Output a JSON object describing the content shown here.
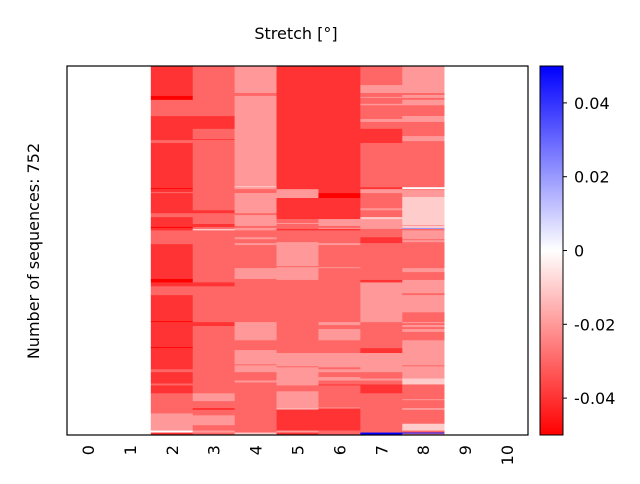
{
  "chart_data": {
    "type": "heatmap",
    "title": "Stretch [°]",
    "xlabel": "",
    "ylabel": "Number of sequences: 752",
    "n_sequences": 752,
    "x_ticks": [
      "0",
      "1",
      "2",
      "3",
      "4",
      "5",
      "6",
      "7",
      "8",
      "9",
      "10"
    ],
    "colorbar": {
      "colormap": "bwr",
      "range": [
        -0.05,
        0.05
      ],
      "ticks": [
        0.04,
        0.02,
        0,
        -0.02,
        -0.04
      ],
      "tick_labels": [
        "0.04",
        "0.02",
        "0",
        "-0.02",
        "-0.04"
      ],
      "neg_color": "#ff0000",
      "pos_color": "#0000ff",
      "mid_color": "#ffffff"
    },
    "columns": [
      {
        "index": 0,
        "segments": []
      },
      {
        "index": 1,
        "segments": []
      },
      {
        "index": 2,
        "segments": [
          [
            0,
            -0.04
          ],
          [
            61,
            -0.05
          ],
          [
            69,
            -0.03
          ],
          [
            102,
            -0.04
          ],
          [
            151,
            -0.03
          ],
          [
            157,
            -0.04
          ],
          [
            249,
            -0.05
          ],
          [
            251,
            -0.04
          ],
          [
            257,
            -0.03
          ],
          [
            259,
            -0.04
          ],
          [
            300,
            -0.03
          ],
          [
            308,
            -0.04
          ],
          [
            328,
            -0.05
          ],
          [
            330,
            -0.04
          ],
          [
            335,
            -0.03
          ],
          [
            363,
            -0.04
          ],
          [
            434,
            -0.05
          ],
          [
            441,
            -0.04
          ],
          [
            449,
            -0.03
          ],
          [
            467,
            -0.04
          ],
          [
            520,
            -0.05
          ],
          [
            522,
            -0.04
          ],
          [
            573,
            -0.05
          ],
          [
            575,
            -0.04
          ],
          [
            618,
            -0.03
          ],
          [
            624,
            -0.04
          ],
          [
            647,
            -0.03
          ],
          [
            651,
            -0.04
          ],
          [
            667,
            -0.03
          ],
          [
            708,
            -0.02
          ],
          [
            743,
            0
          ],
          [
            747,
            -0.04
          ]
        ]
      },
      {
        "index": 3,
        "segments": [
          [
            0,
            -0.03
          ],
          [
            102,
            -0.04
          ],
          [
            128,
            -0.03
          ],
          [
            149,
            -0.04
          ],
          [
            151,
            -0.03
          ],
          [
            294,
            -0.04
          ],
          [
            300,
            -0.03
          ],
          [
            322,
            -0.04
          ],
          [
            328,
            -0.03
          ],
          [
            332,
            -0.01
          ],
          [
            335,
            -0.03
          ],
          [
            441,
            -0.04
          ],
          [
            449,
            -0.03
          ],
          [
            522,
            -0.04
          ],
          [
            530,
            -0.03
          ],
          [
            667,
            -0.02
          ],
          [
            683,
            -0.03
          ],
          [
            698,
            -0.05
          ],
          [
            700,
            -0.03
          ],
          [
            712,
            -0.02
          ],
          [
            732,
            -0.03
          ],
          [
            743,
            -0.02
          ],
          [
            747,
            -0.03
          ]
        ]
      },
      {
        "index": 4,
        "segments": [
          [
            0,
            -0.02
          ],
          [
            55,
            -0.03
          ],
          [
            61,
            -0.02
          ],
          [
            245,
            -0.01
          ],
          [
            247,
            -0.02
          ],
          [
            251,
            -0.03
          ],
          [
            259,
            -0.02
          ],
          [
            300,
            -0.03
          ],
          [
            304,
            -0.02
          ],
          [
            326,
            -0.03
          ],
          [
            330,
            -0.02
          ],
          [
            335,
            -0.03
          ],
          [
            349,
            -0.02
          ],
          [
            353,
            -0.03
          ],
          [
            361,
            -0.02
          ],
          [
            365,
            -0.03
          ],
          [
            412,
            -0.02
          ],
          [
            434,
            -0.03
          ],
          [
            522,
            -0.02
          ],
          [
            559,
            -0.03
          ],
          [
            579,
            -0.02
          ],
          [
            608,
            -0.03
          ],
          [
            610,
            -0.02
          ],
          [
            624,
            -0.03
          ],
          [
            641,
            -0.02
          ],
          [
            645,
            -0.03
          ],
          [
            747,
            -0.01
          ]
        ]
      },
      {
        "index": 5,
        "segments": [
          [
            0,
            -0.04
          ],
          [
            251,
            -0.02
          ],
          [
            269,
            -0.04
          ],
          [
            312,
            -0.03
          ],
          [
            320,
            -0.02
          ],
          [
            322,
            -0.03
          ],
          [
            332,
            -0.04
          ],
          [
            335,
            -0.03
          ],
          [
            359,
            -0.02
          ],
          [
            408,
            -0.03
          ],
          [
            410,
            -0.02
          ],
          [
            436,
            -0.03
          ],
          [
            585,
            -0.02
          ],
          [
            612,
            -0.03
          ],
          [
            614,
            -0.02
          ],
          [
            651,
            -0.03
          ],
          [
            663,
            -0.02
          ],
          [
            698,
            -0.01
          ],
          [
            700,
            -0.04
          ],
          [
            743,
            -0.02
          ],
          [
            747,
            -0.04
          ]
        ]
      },
      {
        "index": 6,
        "segments": [
          [
            0,
            -0.04
          ],
          [
            259,
            -0.05
          ],
          [
            269,
            -0.04
          ],
          [
            312,
            -0.02
          ],
          [
            326,
            -0.03
          ],
          [
            330,
            -0.02
          ],
          [
            332,
            -0.04
          ],
          [
            335,
            -0.03
          ],
          [
            361,
            -0.02
          ],
          [
            365,
            -0.03
          ],
          [
            410,
            -0.02
          ],
          [
            412,
            -0.03
          ],
          [
            522,
            -0.02
          ],
          [
            528,
            -0.03
          ],
          [
            536,
            -0.02
          ],
          [
            559,
            -0.03
          ],
          [
            585,
            -0.02
          ],
          [
            614,
            -0.03
          ],
          [
            618,
            -0.02
          ],
          [
            624,
            -0.03
          ],
          [
            634,
            -0.02
          ],
          [
            641,
            -0.03
          ],
          [
            649,
            -0.04
          ],
          [
            651,
            -0.03
          ],
          [
            696,
            -0.02
          ],
          [
            698,
            -0.04
          ],
          [
            743,
            -0.03
          ]
        ]
      },
      {
        "index": 7,
        "segments": [
          [
            0,
            -0.03
          ],
          [
            39,
            -0.02
          ],
          [
            55,
            -0.03
          ],
          [
            63,
            -0.02
          ],
          [
            65,
            -0.03
          ],
          [
            77,
            -0.02
          ],
          [
            80,
            -0.03
          ],
          [
            108,
            -0.02
          ],
          [
            114,
            -0.03
          ],
          [
            128,
            -0.04
          ],
          [
            157,
            -0.03
          ],
          [
            247,
            -0.04
          ],
          [
            251,
            -0.02
          ],
          [
            259,
            -0.03
          ],
          [
            290,
            -0.02
          ],
          [
            294,
            -0.03
          ],
          [
            308,
            -0.01
          ],
          [
            312,
            -0.02
          ],
          [
            332,
            -0.03
          ],
          [
            349,
            -0.04
          ],
          [
            361,
            -0.03
          ],
          [
            436,
            -0.04
          ],
          [
            441,
            -0.02
          ],
          [
            522,
            -0.03
          ],
          [
            575,
            -0.04
          ],
          [
            585,
            -0.02
          ],
          [
            624,
            -0.03
          ],
          [
            637,
            -0.02
          ],
          [
            641,
            -0.03
          ],
          [
            649,
            -0.04
          ],
          [
            667,
            -0.03
          ],
          [
            747,
            0.05
          ]
        ]
      },
      {
        "index": 8,
        "segments": [
          [
            0,
            -0.02
          ],
          [
            55,
            -0.03
          ],
          [
            59,
            -0.02
          ],
          [
            65,
            -0.03
          ],
          [
            69,
            -0.02
          ],
          [
            80,
            -0.03
          ],
          [
            102,
            -0.02
          ],
          [
            114,
            -0.03
          ],
          [
            143,
            -0.02
          ],
          [
            153,
            -0.03
          ],
          [
            247,
            0
          ],
          [
            251,
            -0.03
          ],
          [
            253,
            -0.02
          ],
          [
            267,
            -0.01
          ],
          [
            324,
            -0.02
          ],
          [
            326,
            -0.01
          ],
          [
            330,
            0.02
          ],
          [
            332,
            -0.03
          ],
          [
            335,
            -0.02
          ],
          [
            353,
            -0.03
          ],
          [
            355,
            -0.02
          ],
          [
            359,
            -0.03
          ],
          [
            412,
            -0.02
          ],
          [
            420,
            -0.03
          ],
          [
            436,
            -0.02
          ],
          [
            463,
            -0.03
          ],
          [
            467,
            -0.02
          ],
          [
            502,
            -0.03
          ],
          [
            522,
            -0.02
          ],
          [
            524,
            -0.03
          ],
          [
            528,
            -0.02
          ],
          [
            532,
            -0.03
          ],
          [
            536,
            -0.02
          ],
          [
            542,
            -0.03
          ],
          [
            559,
            -0.02
          ],
          [
            610,
            -0.03
          ],
          [
            612,
            -0.02
          ],
          [
            637,
            -0.01
          ],
          [
            649,
            -0.03
          ],
          [
            679,
            -0.02
          ],
          [
            681,
            -0.03
          ],
          [
            698,
            -0.01
          ],
          [
            700,
            -0.03
          ],
          [
            729,
            -0.01
          ],
          [
            743,
            -0.03
          ],
          [
            747,
            0.05
          ],
          [
            749,
            -0.02
          ],
          [
            751,
            -0.03
          ]
        ]
      },
      {
        "index": 9,
        "segments": []
      },
      {
        "index": 10,
        "segments": []
      }
    ]
  }
}
